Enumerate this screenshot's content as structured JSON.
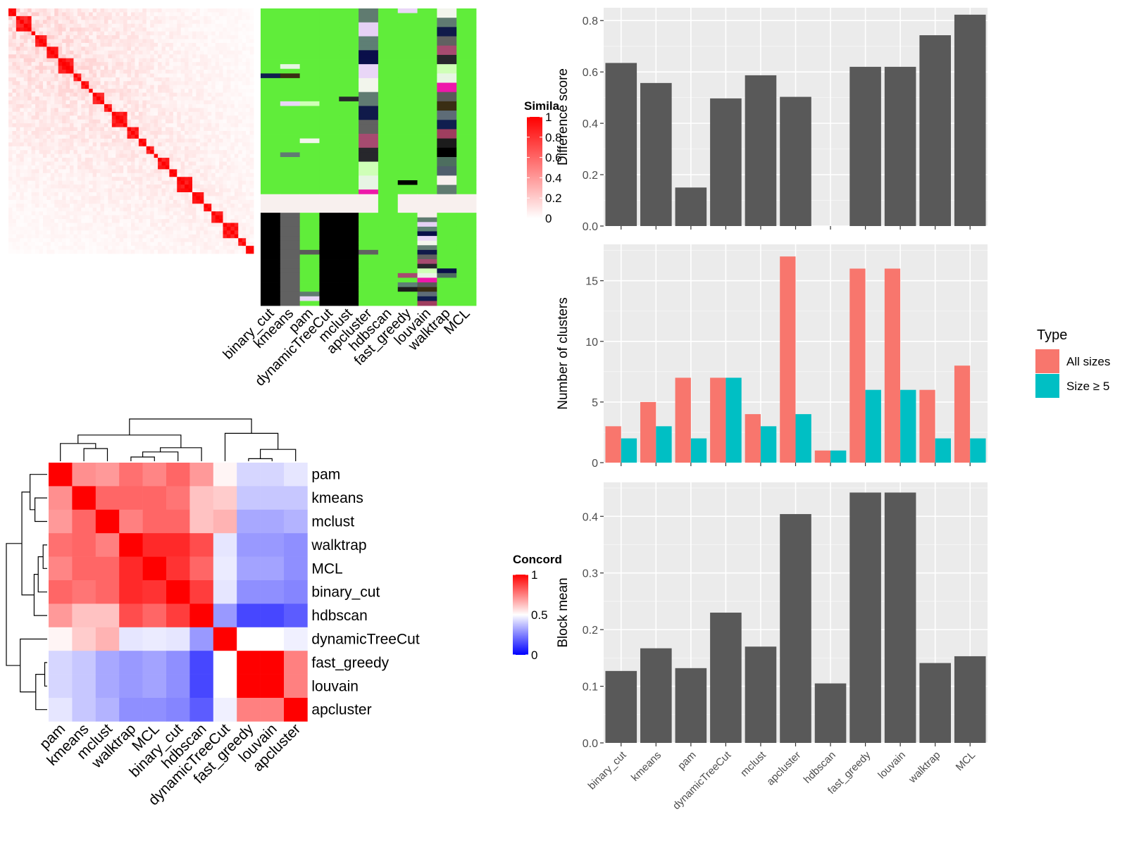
{
  "colors": {
    "sim_low": "#FFFFFF",
    "sim_high": "#FF0000",
    "conc_low": "#0000FF",
    "conc_mid": "#FFFFFF",
    "conc_high": "#FF0000",
    "bar_fill": "#595959",
    "panel_bg": "#EBEBEB",
    "grid_major": "#FFFFFF",
    "all_sizes": "#F8766D",
    "size_ge5": "#00BFC4",
    "membership_default": "#60ED3A",
    "membership_palette": [
      "#607B70",
      "#E5D1F5",
      "#5E7F75",
      "#0A0F4A",
      "#E9D6F7",
      "#F2F5EC",
      "#607B72",
      "#101A4A",
      "#616161",
      "#A64B70",
      "#27272C",
      "#CFFFB7",
      "#E7F5E4",
      "#EE18AA",
      "#5A5A5A",
      "#3A2E14",
      "#5E6C77",
      "#101E4F",
      "#9F3E5F",
      "#1C1C1C",
      "#000000",
      "#4D6E5F",
      "#4F5E6C",
      "#F8F0EE"
    ]
  },
  "chart_data": [
    {
      "type": "heatmap",
      "id": "similarity-heatmap",
      "legend_title": "Similarity",
      "legend_title_visible": "Simila",
      "legend_ticks": [
        0,
        0.2,
        0.4,
        0.6,
        0.8,
        1
      ],
      "n_terms": 64,
      "diagonal_blocks": [
        2,
        4,
        1,
        3,
        3,
        4,
        2,
        2,
        1,
        3,
        2,
        4,
        3,
        2,
        2,
        1,
        3,
        2,
        4,
        3,
        2,
        3,
        4,
        2,
        2
      ]
    },
    {
      "type": "heatmap",
      "id": "cluster-membership",
      "columns": [
        "binary_cut",
        "kmeans",
        "pam",
        "dynamicTreeCut",
        "mclust",
        "apcluster",
        "hdbscan",
        "fast_greedy",
        "louvain",
        "walktrap",
        "MCL"
      ]
    },
    {
      "type": "heatmap",
      "id": "concordance-heatmap",
      "legend_title": "Concordance",
      "legend_title_visible": "Concord",
      "legend_ticks": [
        0,
        0.5,
        1
      ],
      "rows": [
        "pam",
        "kmeans",
        "mclust",
        "walktrap",
        "MCL",
        "binary_cut",
        "hdbscan",
        "dynamicTreeCut",
        "fast_greedy",
        "louvain",
        "apcluster"
      ],
      "columns": [
        "pam",
        "kmeans",
        "mclust",
        "walktrap",
        "MCL",
        "binary_cut",
        "hdbscan",
        "dynamicTreeCut",
        "fast_greedy",
        "louvain",
        "apcluster"
      ],
      "values": [
        [
          1.0,
          0.72,
          0.7,
          0.78,
          0.74,
          0.8,
          0.7,
          0.52,
          0.42,
          0.42,
          0.45
        ],
        [
          0.72,
          1.0,
          0.8,
          0.8,
          0.8,
          0.77,
          0.62,
          0.6,
          0.39,
          0.39,
          0.39
        ],
        [
          0.7,
          0.8,
          1.0,
          0.75,
          0.8,
          0.8,
          0.62,
          0.65,
          0.33,
          0.33,
          0.35
        ],
        [
          0.78,
          0.8,
          0.75,
          1.0,
          0.92,
          0.92,
          0.85,
          0.45,
          0.3,
          0.3,
          0.28
        ],
        [
          0.74,
          0.8,
          0.8,
          0.92,
          1.0,
          0.9,
          0.8,
          0.46,
          0.32,
          0.32,
          0.28
        ],
        [
          0.8,
          0.77,
          0.8,
          0.92,
          0.9,
          1.0,
          0.88,
          0.45,
          0.28,
          0.28,
          0.26
        ],
        [
          0.7,
          0.62,
          0.62,
          0.85,
          0.8,
          0.88,
          1.0,
          0.3,
          0.14,
          0.14,
          0.18
        ],
        [
          0.52,
          0.6,
          0.65,
          0.45,
          0.46,
          0.45,
          0.3,
          1.0,
          0.5,
          0.5,
          0.47
        ],
        [
          0.42,
          0.39,
          0.33,
          0.3,
          0.32,
          0.28,
          0.14,
          0.5,
          1.0,
          1.0,
          0.75
        ],
        [
          0.42,
          0.39,
          0.33,
          0.3,
          0.32,
          0.28,
          0.14,
          0.5,
          1.0,
          1.0,
          0.75
        ],
        [
          0.45,
          0.39,
          0.35,
          0.28,
          0.28,
          0.26,
          0.18,
          0.47,
          0.75,
          0.75,
          1.0
        ]
      ]
    },
    {
      "type": "bar",
      "id": "difference-score",
      "categories": [
        "binary_cut",
        "kmeans",
        "pam",
        "dynamicTreeCut",
        "mclust",
        "apcluster",
        "hdbscan",
        "fast_greedy",
        "louvain",
        "walktrap",
        "MCL"
      ],
      "values": [
        0.635,
        0.557,
        0.15,
        0.497,
        0.587,
        0.503,
        0,
        0.62,
        0.62,
        0.743,
        0.823
      ],
      "ylabel": "Difference score",
      "ylim": [
        0,
        0.85
      ],
      "yticks": [
        "0.0",
        "0.2",
        "0.4",
        "0.6",
        "0.8"
      ],
      "ytick_values": [
        0,
        0.2,
        0.4,
        0.6,
        0.8
      ]
    },
    {
      "type": "bar",
      "id": "number-of-clusters",
      "categories": [
        "binary_cut",
        "kmeans",
        "pam",
        "dynamicTreeCut",
        "mclust",
        "apcluster",
        "hdbscan",
        "fast_greedy",
        "louvain",
        "walktrap",
        "MCL"
      ],
      "series": [
        {
          "name": "All sizes",
          "values": [
            3,
            5,
            7,
            7,
            4,
            17,
            1,
            16,
            16,
            6,
            8
          ]
        },
        {
          "name": "Size ≥ 5",
          "values": [
            2,
            3,
            2,
            7,
            3,
            4,
            1,
            6,
            6,
            2,
            2
          ]
        }
      ],
      "ylabel": "Number of clusters",
      "ylim": [
        0,
        18
      ],
      "yticks": [
        "0",
        "5",
        "10",
        "15"
      ],
      "ytick_values": [
        0,
        5,
        10,
        15
      ],
      "legend_title": "Type",
      "legend_position": "right"
    },
    {
      "type": "bar",
      "id": "block-mean",
      "categories": [
        "binary_cut",
        "kmeans",
        "pam",
        "dynamicTreeCut",
        "mclust",
        "apcluster",
        "hdbscan",
        "fast_greedy",
        "louvain",
        "walktrap",
        "MCL"
      ],
      "values": [
        0.127,
        0.167,
        0.132,
        0.23,
        0.17,
        0.404,
        0.105,
        0.442,
        0.442,
        0.141,
        0.153
      ],
      "ylabel": "Block mean",
      "ylim": [
        0,
        0.46
      ],
      "yticks": [
        "0.0",
        "0.1",
        "0.2",
        "0.3",
        "0.4"
      ],
      "ytick_values": [
        0,
        0.1,
        0.2,
        0.3,
        0.4
      ]
    }
  ]
}
